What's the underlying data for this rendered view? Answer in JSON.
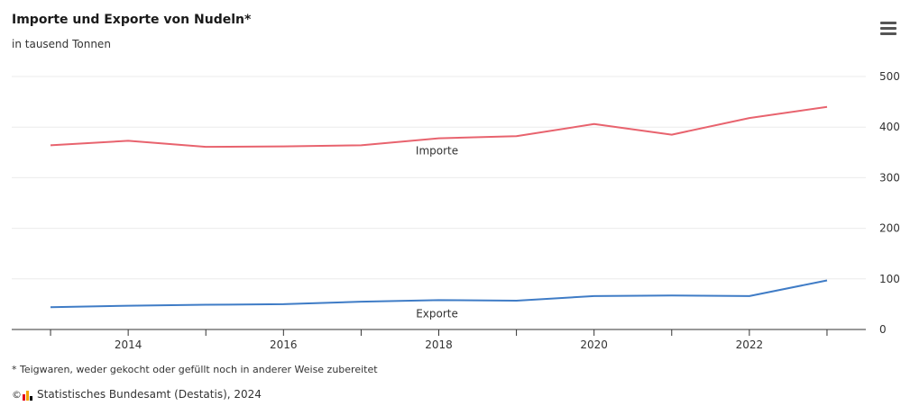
{
  "header": {
    "title": "Importe und Exporte von Nudeln*",
    "subtitle": "in tausend Tonnen"
  },
  "footer": {
    "footnote": "* Teigwaren, weder gekocht oder gefüllt noch in anderer Weise zubereitet",
    "copyright_symbol": "©",
    "credits": "Statistisches Bundesamt (Destatis), 2024"
  },
  "colors": {
    "importe": "#e8636e",
    "exporte": "#3f7cc6",
    "grid": "#ebebeb",
    "axis": "#333333",
    "logo": [
      "#e2001a",
      "#f5a300",
      "#000000"
    ]
  },
  "icons": {
    "menu": "hamburger-menu-icon",
    "logo": "destatis-logo-icon"
  },
  "chart_data": {
    "type": "line",
    "title": "Importe und Exporte von Nudeln*",
    "subtitle": "in tausend Tonnen",
    "x": [
      2013,
      2014,
      2015,
      2016,
      2017,
      2018,
      2019,
      2020,
      2021,
      2022,
      2023
    ],
    "series": [
      {
        "name": "Importe",
        "values": [
          364,
          373,
          361,
          362,
          364,
          378,
          382,
          406,
          385,
          418,
          440
        ]
      },
      {
        "name": "Exporte",
        "values": [
          44,
          47,
          49,
          50,
          55,
          58,
          57,
          66,
          67,
          66,
          97
        ]
      }
    ],
    "xticks": [
      "2014",
      "2016",
      "2018",
      "2020",
      "2022"
    ],
    "yticks": [
      "0",
      "100",
      "200",
      "300",
      "400",
      "500"
    ],
    "ylim": [
      0,
      500
    ],
    "xlim": [
      2012.5,
      2023.5
    ],
    "grid": true,
    "legend": "inline labels"
  }
}
